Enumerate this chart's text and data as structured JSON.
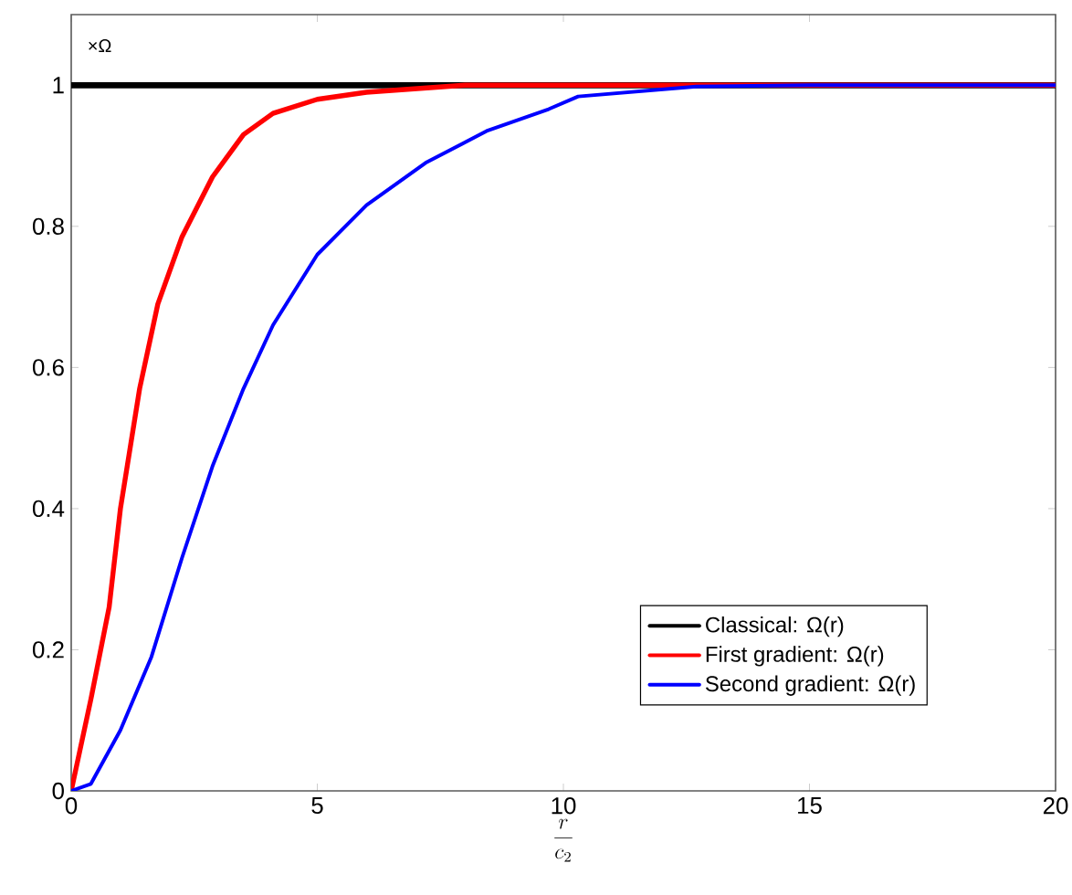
{
  "chart_data": {
    "type": "line",
    "xlabel": "\\frac{r}{c_2}",
    "ylabel": "×Ω",
    "xlim": [
      0,
      20
    ],
    "ylim": [
      0,
      1.1
    ],
    "xticks": [
      0,
      5,
      10,
      15,
      20
    ],
    "yticks": [
      0,
      0.2,
      0.4,
      0.6,
      0.8,
      1
    ],
    "legend": "bottom right",
    "grid": false,
    "marker": "none",
    "line_style": "solid",
    "series": [
      {
        "name": "Classical: Ω(r)",
        "color": "#000000",
        "x": [
          0,
          20
        ],
        "values": [
          1,
          1
        ]
      },
      {
        "name": "First gradient: Ω(r)",
        "color": "#ff0000",
        "x": [
          0,
          0.4,
          0.77,
          1.0,
          1.39,
          1.76,
          2.25,
          2.87,
          3.5,
          4.1,
          5,
          6,
          8,
          10,
          20
        ],
        "values": [
          0,
          0.13,
          0.26,
          0.4,
          0.57,
          0.69,
          0.785,
          0.87,
          0.93,
          0.96,
          0.98,
          0.99,
          1.0,
          1.0,
          1.0
        ]
      },
      {
        "name": "Second gradient: Ω(r)",
        "color": "#0000ff",
        "x": [
          0,
          0.4,
          1.0,
          1.63,
          2.25,
          2.87,
          3.5,
          4.1,
          5,
          6,
          7.2,
          8.44,
          9.7,
          10.3,
          12.7,
          15,
          20
        ],
        "values": [
          0,
          0.01,
          0.086,
          0.19,
          0.33,
          0.46,
          0.57,
          0.66,
          0.76,
          0.83,
          0.89,
          0.935,
          0.966,
          0.984,
          0.998,
          1.0,
          1.0
        ]
      }
    ]
  }
}
